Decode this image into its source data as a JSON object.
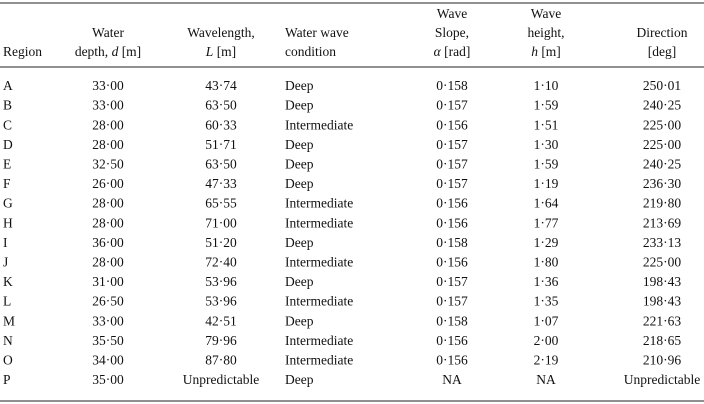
{
  "table": {
    "headers": [
      [
        [
          "Region"
        ]
      ],
      [
        [
          "Water"
        ],
        [
          "depth, ",
          "d",
          " [m]"
        ]
      ],
      [
        [
          "Wavelength,"
        ],
        [
          "",
          "L",
          " [m]"
        ]
      ],
      [
        [
          "Water wave"
        ],
        [
          "condition"
        ]
      ],
      [
        [
          "Wave"
        ],
        [
          "Slope,"
        ],
        [
          "",
          "α",
          " [rad]"
        ]
      ],
      [
        [
          "Wave"
        ],
        [
          "height,"
        ],
        [
          "",
          "h",
          " [m]"
        ]
      ],
      [
        [
          "Direction"
        ],
        [
          "[deg]"
        ]
      ]
    ],
    "rows": [
      [
        "A",
        "33·00",
        "43·74",
        "Deep",
        "0·158",
        "1·10",
        "250·01"
      ],
      [
        "B",
        "33·00",
        "63·50",
        "Deep",
        "0·157",
        "1·59",
        "240·25"
      ],
      [
        "C",
        "28·00",
        "60·33",
        "Intermediate",
        "0·156",
        "1·51",
        "225·00"
      ],
      [
        "D",
        "28·00",
        "51·71",
        "Deep",
        "0·157",
        "1·30",
        "225·00"
      ],
      [
        "E",
        "32·50",
        "63·50",
        "Deep",
        "0·157",
        "1·59",
        "240·25"
      ],
      [
        "F",
        "26·00",
        "47·33",
        "Deep",
        "0·157",
        "1·19",
        "236·30"
      ],
      [
        "G",
        "28·00",
        "65·55",
        "Intermediate",
        "0·156",
        "1·64",
        "219·80"
      ],
      [
        "H",
        "28·00",
        "71·00",
        "Intermediate",
        "0·156",
        "1·77",
        "213·69"
      ],
      [
        "I",
        "36·00",
        "51·20",
        "Deep",
        "0·158",
        "1·29",
        "233·13"
      ],
      [
        "J",
        "28·00",
        "72·40",
        "Intermediate",
        "0·156",
        "1·80",
        "225·00"
      ],
      [
        "K",
        "31·00",
        "53·96",
        "Deep",
        "0·157",
        "1·36",
        "198·43"
      ],
      [
        "L",
        "26·50",
        "53·96",
        "Intermediate",
        "0·157",
        "1·35",
        "198·43"
      ],
      [
        "M",
        "33·00",
        "42·51",
        "Deep",
        "0·158",
        "1·07",
        "221·63"
      ],
      [
        "N",
        "35·50",
        "79·96",
        "Intermediate",
        "0·156",
        "2·00",
        "218·65"
      ],
      [
        "O",
        "34·00",
        "87·80",
        "Intermediate",
        "0·156",
        "2·19",
        "210·96"
      ],
      [
        "P",
        "35·00",
        "Unpredictable",
        "Deep",
        "NA",
        "NA",
        "Unpredictable"
      ]
    ]
  }
}
